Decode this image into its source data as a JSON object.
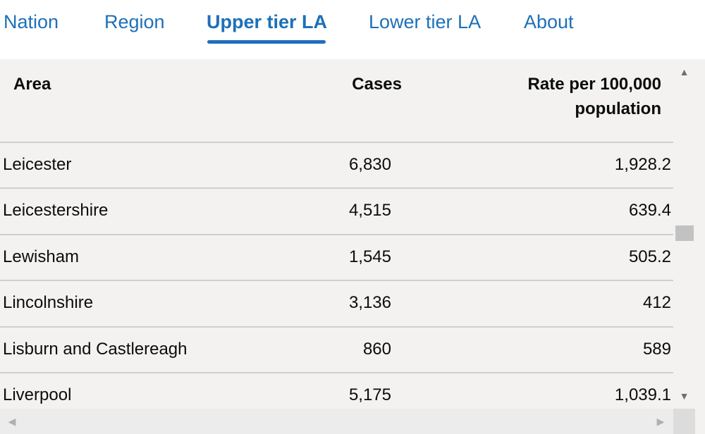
{
  "tabs": [
    {
      "label": "Nation"
    },
    {
      "label": "Region"
    },
    {
      "label": "Upper tier LA"
    },
    {
      "label": "Lower tier LA"
    },
    {
      "label": "About"
    }
  ],
  "active_tab": "Upper tier LA",
  "accent_color": "#1d70b8",
  "table": {
    "headers": {
      "area": "Area",
      "cases": "Cases",
      "rate_line1": "Rate per 100,000",
      "rate_line2": "population"
    },
    "rows": [
      {
        "area": "Leicester",
        "cases": "6,830",
        "rate": "1,928.2"
      },
      {
        "area": "Leicestershire",
        "cases": "4,515",
        "rate": "639.4"
      },
      {
        "area": "Lewisham",
        "cases": "1,545",
        "rate": "505.2"
      },
      {
        "area": "Lincolnshire",
        "cases": "3,136",
        "rate": "412"
      },
      {
        "area": "Lisburn and Castlereagh",
        "cases": "860",
        "rate": "589"
      },
      {
        "area": "Liverpool",
        "cases": "5,175",
        "rate": "1,039.1"
      }
    ]
  },
  "scrollbars": {
    "up_icon": "triangle-up",
    "down_icon": "triangle-down",
    "left_icon": "triangle-left",
    "right_icon": "triangle-right"
  }
}
